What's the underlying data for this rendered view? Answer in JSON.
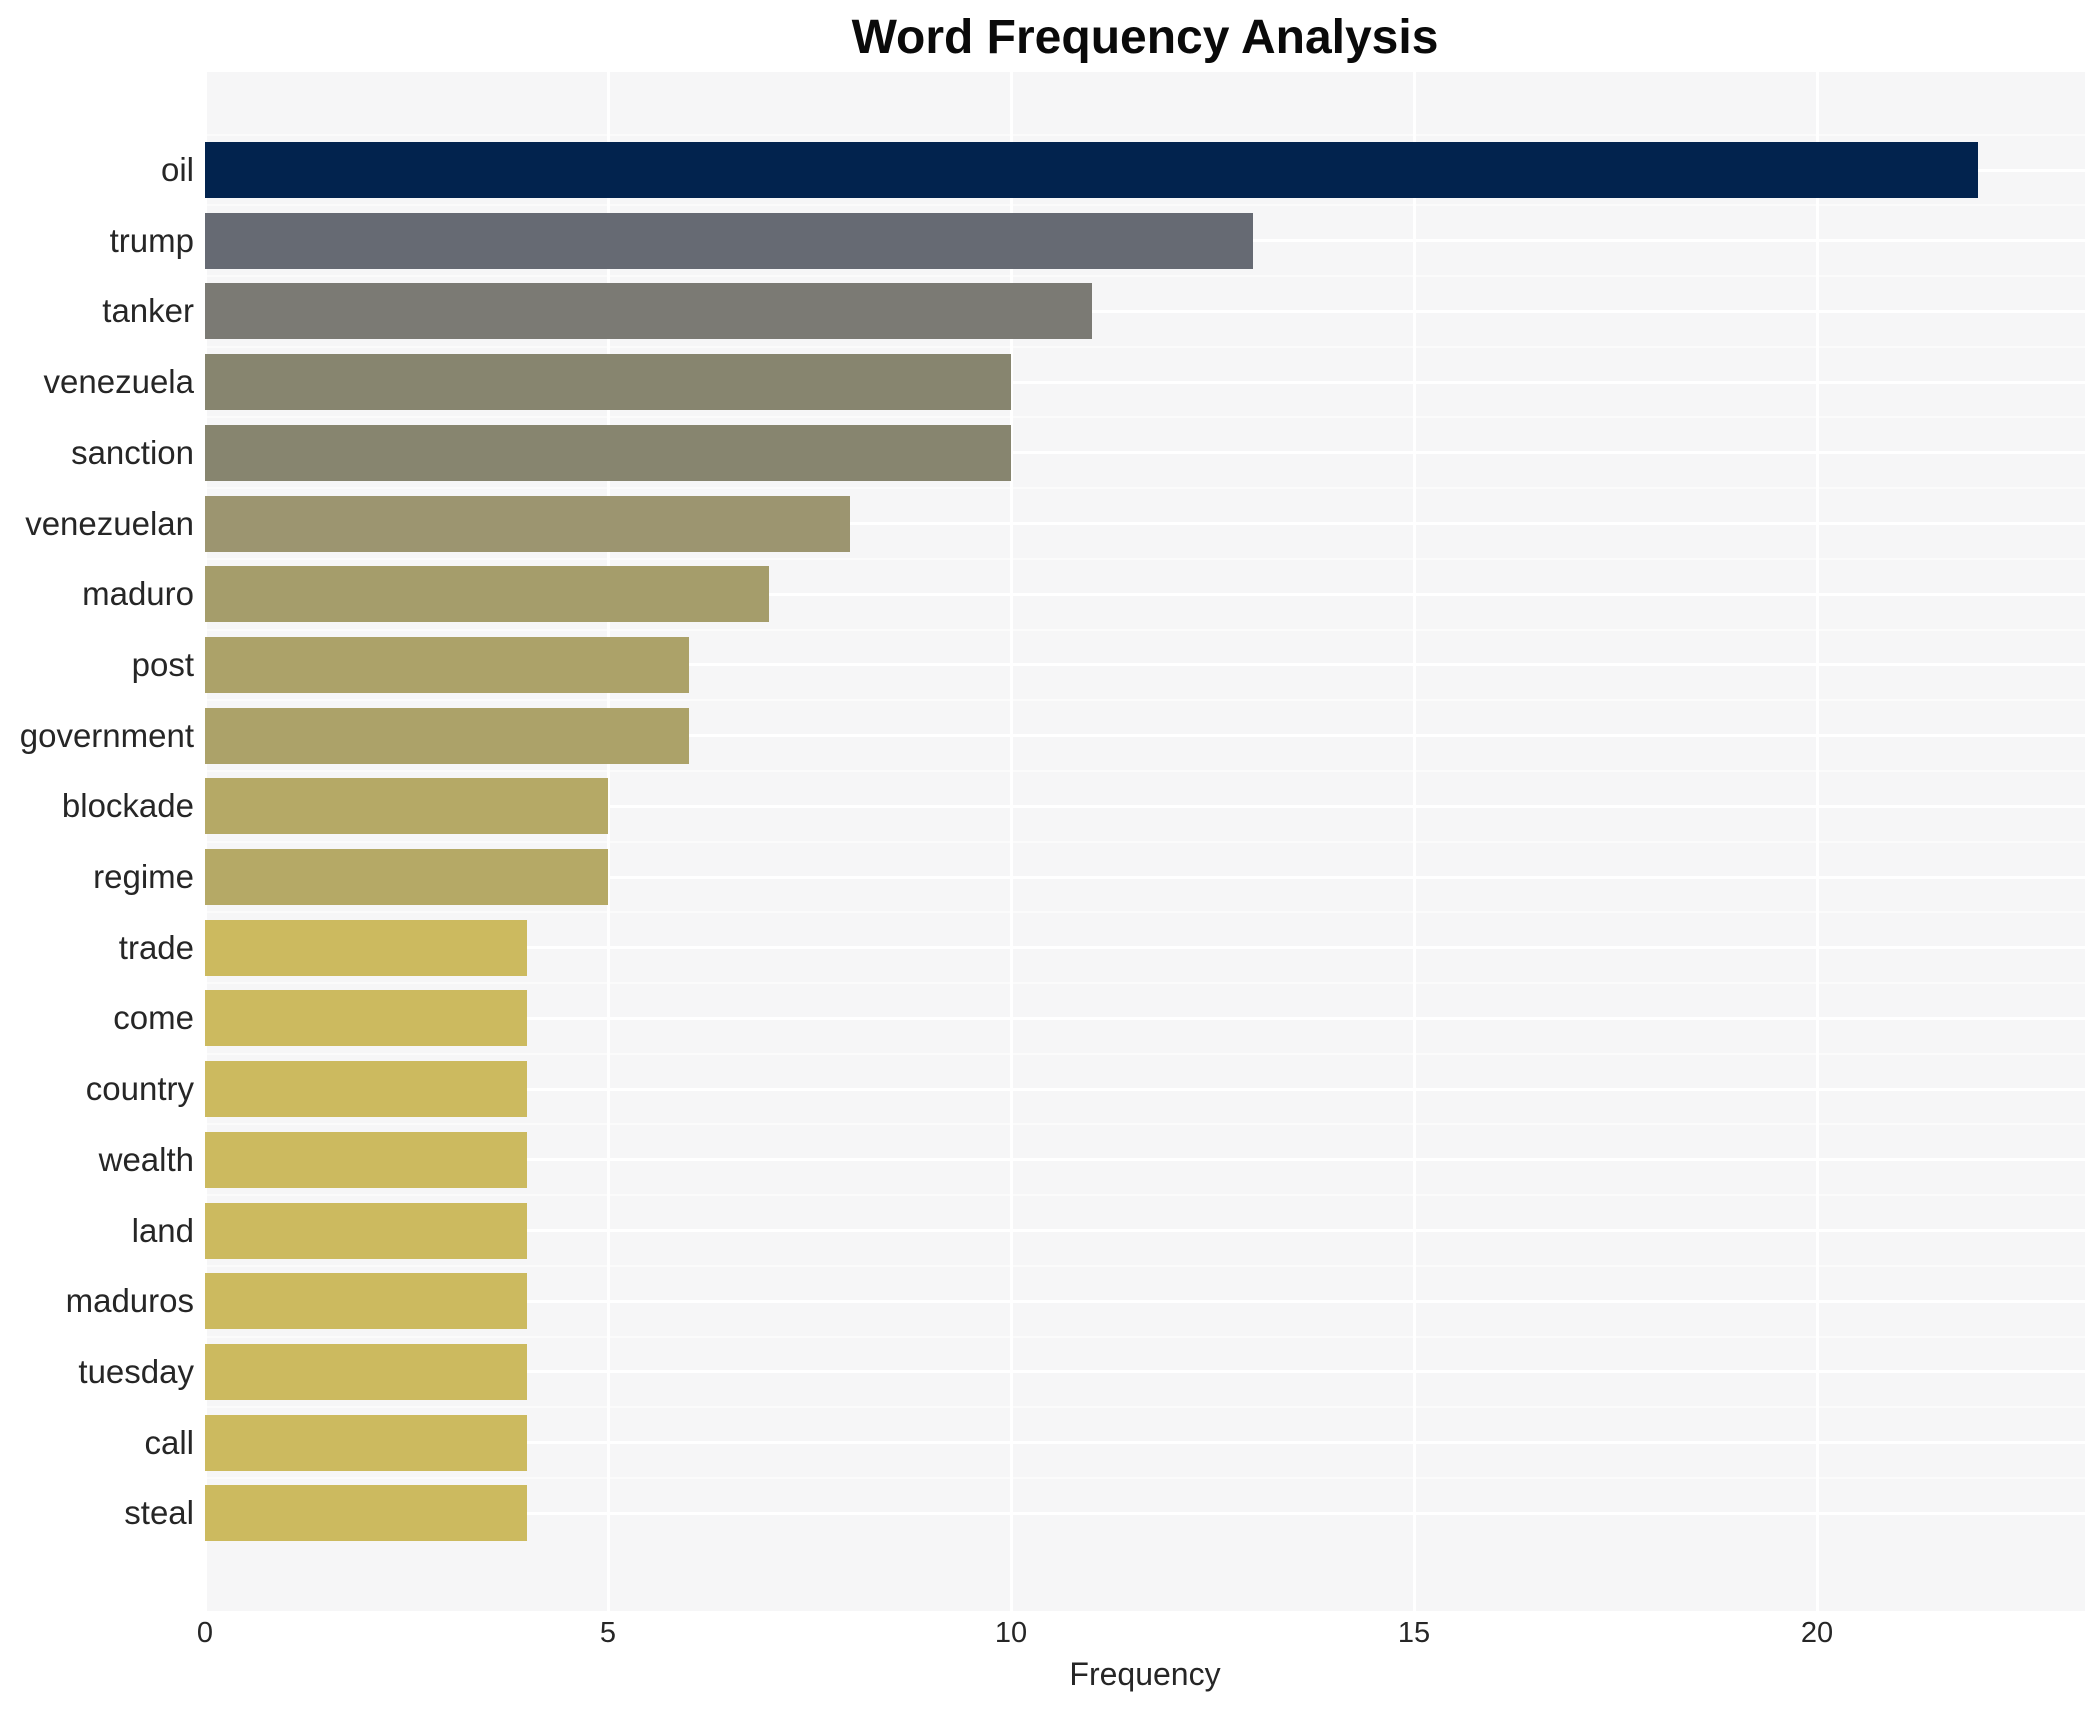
{
  "title": "Word Frequency Analysis",
  "chart_data": {
    "type": "bar",
    "orientation": "horizontal",
    "title": "Word Frequency Analysis",
    "xlabel": "Frequency",
    "ylabel": "",
    "categories": [
      "oil",
      "trump",
      "tanker",
      "venezuela",
      "sanction",
      "venezuelan",
      "maduro",
      "post",
      "government",
      "blockade",
      "regime",
      "trade",
      "come",
      "country",
      "wealth",
      "land",
      "maduros",
      "tuesday",
      "call",
      "steal"
    ],
    "values": [
      22,
      13,
      11,
      10,
      10,
      8,
      7,
      6,
      6,
      5,
      5,
      4,
      4,
      4,
      4,
      4,
      4,
      4,
      4,
      4
    ],
    "bar_colors": [
      "#02234e",
      "#666a73",
      "#7b7a74",
      "#87856f",
      "#87856f",
      "#9c9570",
      "#a59d6b",
      "#aca269",
      "#aca269",
      "#b5a966",
      "#b5a966",
      "#ccba5f",
      "#ccba5f",
      "#ccba5f",
      "#ccba5f",
      "#ccba5f",
      "#ccba5f",
      "#ccba5f",
      "#ccba5f",
      "#ccba5f"
    ],
    "x_ticks": [
      0,
      5,
      10,
      15,
      20
    ],
    "x_tick_labels": [
      "0",
      "5",
      "10",
      "15",
      "20"
    ],
    "xlim": [
      0,
      23.3
    ],
    "grid": true,
    "legend": "none",
    "colormap": "cividis-reversed-by-value"
  },
  "style": {
    "panel_bg": "#f6f6f7",
    "figure_bg": "#ffffff",
    "gridline_color": "#ffffff",
    "text_color": "#262626",
    "title_color": "#0a0a0a"
  }
}
